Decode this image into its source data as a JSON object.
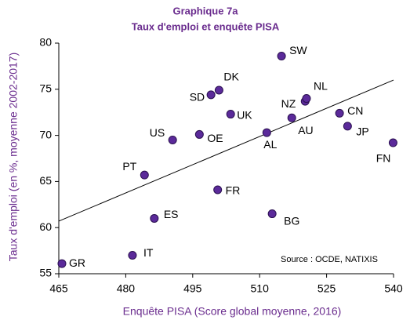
{
  "chart_data": {
    "type": "scatter",
    "title": "Graphique 7a",
    "subtitle": "Taux d'emploi et enquête PISA",
    "x_label": "Enquête PISA (Score global moyenne, 2016)",
    "y_label": "Taux d'emploi  (en %, moyenne 2002-2017)",
    "source": "Source : OCDE, NATIXIS",
    "labels": [
      "GR",
      "IT",
      "ES",
      "PT",
      "US",
      "OE",
      "SD",
      "DK",
      "UK",
      "FR",
      "SW",
      "AL",
      "NZ",
      "NL",
      "AU",
      "BG",
      "CN",
      "JP",
      "FN"
    ],
    "x": [
      465.7,
      481.5,
      486.4,
      484.2,
      490.5,
      496.5,
      499.1,
      500.9,
      503.5,
      500.6,
      514.9,
      511.6,
      520.2,
      520.5,
      517.2,
      512.8,
      527.9,
      529.7,
      539.9
    ],
    "y": [
      56.1,
      57.0,
      61.0,
      65.7,
      69.5,
      70.1,
      74.4,
      74.9,
      72.3,
      64.1,
      78.6,
      70.3,
      73.7,
      74.0,
      71.9,
      61.5,
      72.4,
      71.0,
      69.2
    ],
    "color": "#5b2a9a",
    "trendline": {
      "x": [
        465,
        540
      ],
      "y": [
        60.7,
        76.0
      ]
    },
    "xlim": [
      465,
      540
    ],
    "xticks": [
      465,
      480,
      495,
      510,
      525,
      540
    ],
    "ylim": [
      55,
      80
    ],
    "yticks": [
      55,
      60,
      65,
      70,
      75,
      80
    ],
    "grid": false
  }
}
